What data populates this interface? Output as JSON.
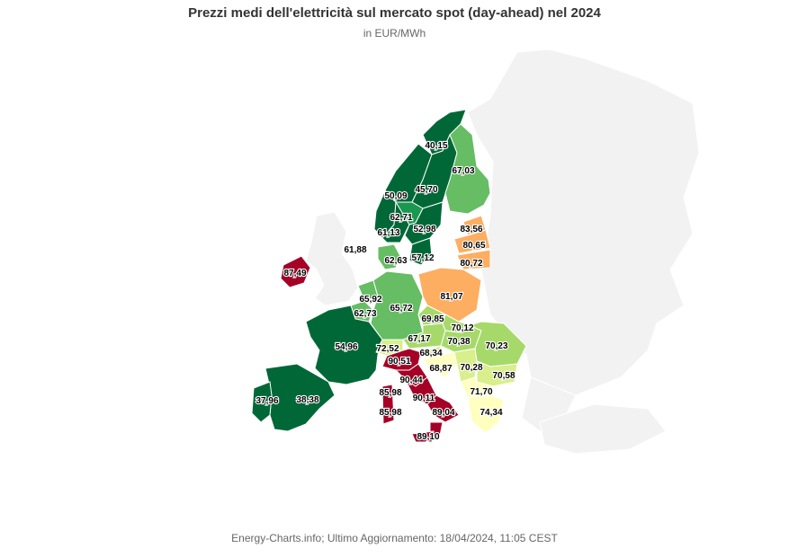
{
  "title": "Prezzi medi dell'elettricità sul mercato spot (day-ahead) nel 2024",
  "subtitle": "in EUR/MWh",
  "footer": "Energy-Charts.info; Ultimo Aggiornamento: 18/04/2024, 11:05 CEST",
  "colors": {
    "background_land": "#f2f2f2",
    "dark_green": "#006837",
    "green": "#1a9850",
    "mid_green": "#66bd63",
    "light_green": "#a6d96a",
    "yellow_green": "#d9ef8b",
    "pale_yellow": "#ffffbf",
    "light_orange": "#fee08b",
    "orange": "#fdae61",
    "red": "#d73027",
    "dark_red": "#a50026"
  },
  "zones": {
    "no4": "40,15",
    "fi": "67,03",
    "se2": "45,70",
    "no3": "50,09",
    "se3_north": "62,71",
    "no1": "61,13",
    "se3": "52,98",
    "no5": "61,88",
    "se4": "57,12",
    "dk": "62,63",
    "ee": "83,56",
    "lv": "80,65",
    "lt": "80,72",
    "ie": "87,49",
    "nl": "65,92",
    "be": "62,73",
    "de_lu": "65,72",
    "pl": "81,07",
    "cz": "69,85",
    "sk": "70,12",
    "at": "67,17",
    "hu": "70,38",
    "ro": "70,23",
    "fr": "54,96",
    "ch": "72,52",
    "si": "68,34",
    "it_north": "90,51",
    "hr": "68,87",
    "rs": "70,28",
    "it_cnor": "90,44",
    "bg": "70,58",
    "es": "38,38",
    "pt": "37,96",
    "it_sard": "85,98",
    "it_csud": "90,11",
    "mk": "71,70",
    "it_sud": "89,04",
    "it_sard2": "85,98",
    "gr": "74,34",
    "it_sici": "89,10"
  }
}
